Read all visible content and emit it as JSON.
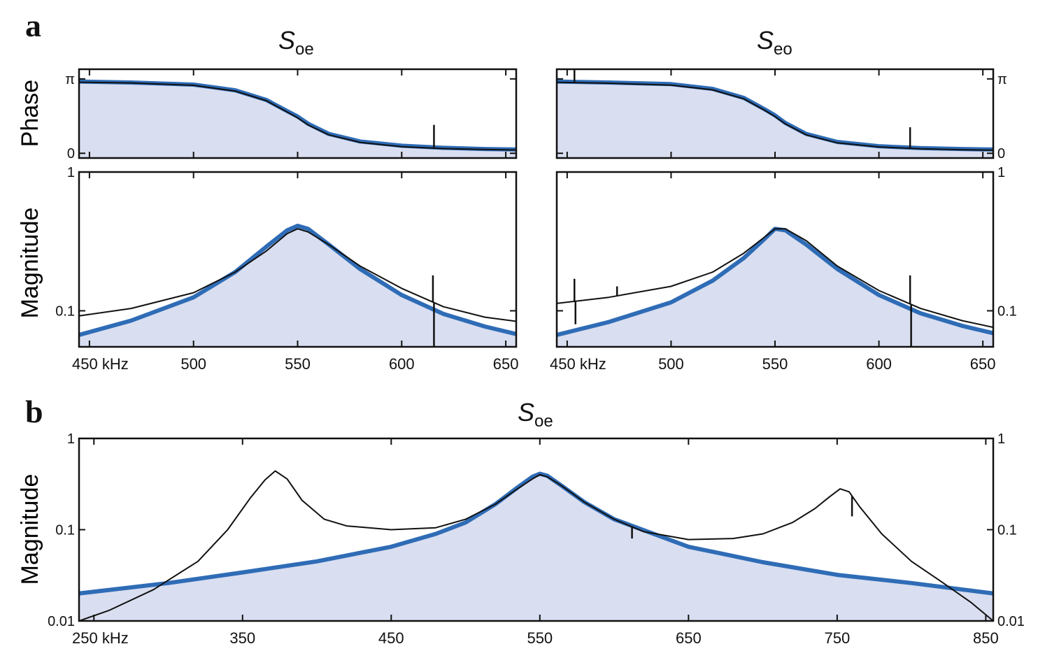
{
  "panel_labels": {
    "a": "a",
    "b": "b"
  },
  "titles": {
    "a_left": {
      "symbol": "S",
      "subscript": "oe"
    },
    "a_right": {
      "symbol": "S",
      "subscript": "eo"
    },
    "b": {
      "symbol": "S",
      "subscript": "oe"
    }
  },
  "axis_labels": {
    "phase": "Phase",
    "magnitude": "Magnitude"
  },
  "colors": {
    "fit": "#2f6cb6",
    "fill": "#d9def0",
    "data": "#111111",
    "frame": "#111111"
  },
  "chart_data": [
    {
      "id": "a-left-phase",
      "type": "line",
      "title": "S_oe",
      "ylabel": "Phase",
      "xlim": [
        445,
        655
      ],
      "ylim": [
        -0.2,
        3.55
      ],
      "yscale": "linear",
      "xticks": [
        450,
        500,
        550,
        600,
        650
      ],
      "yticks": [
        0,
        3.14159
      ],
      "yticklabels": [
        "0",
        "π"
      ],
      "ytick_side": "left",
      "series": [
        {
          "role": "fit",
          "x": [
            445,
            470,
            500,
            520,
            535,
            545,
            550,
            555,
            565,
            580,
            600,
            620,
            640,
            655
          ],
          "y": [
            3.03,
            2.99,
            2.9,
            2.66,
            2.25,
            1.78,
            1.55,
            1.25,
            0.82,
            0.5,
            0.32,
            0.23,
            0.18,
            0.16
          ]
        },
        {
          "role": "data",
          "x": [
            445,
            470,
            500,
            520,
            535,
            545,
            550,
            555,
            565,
            580,
            600,
            620,
            640,
            655
          ],
          "y": [
            3.0,
            2.97,
            2.87,
            2.63,
            2.22,
            1.74,
            1.5,
            1.2,
            0.78,
            0.46,
            0.28,
            0.2,
            0.16,
            0.14
          ],
          "spikes": [
            {
              "x": 615.5,
              "to": 1.2
            }
          ]
        }
      ]
    },
    {
      "id": "a-right-phase",
      "type": "line",
      "title": "S_eo",
      "ylabel": "Phase",
      "xlim": [
        445,
        655
      ],
      "ylim": [
        -0.2,
        3.55
      ],
      "yscale": "linear",
      "xticks": [
        450,
        500,
        550,
        600,
        650
      ],
      "yticks": [
        0,
        3.14159
      ],
      "yticklabels": [
        "0",
        "π"
      ],
      "ytick_side": "right",
      "series": [
        {
          "role": "fit",
          "x": [
            445,
            470,
            500,
            520,
            535,
            545,
            550,
            555,
            565,
            580,
            600,
            620,
            640,
            655
          ],
          "y": [
            3.03,
            2.99,
            2.92,
            2.72,
            2.34,
            1.86,
            1.6,
            1.28,
            0.82,
            0.48,
            0.3,
            0.22,
            0.18,
            0.16
          ]
        },
        {
          "role": "data",
          "x": [
            445,
            470,
            500,
            520,
            535,
            545,
            550,
            555,
            565,
            580,
            600,
            620,
            640,
            655
          ],
          "y": [
            3.0,
            2.96,
            2.88,
            2.68,
            2.3,
            1.82,
            1.55,
            1.24,
            0.78,
            0.44,
            0.27,
            0.19,
            0.15,
            0.13
          ],
          "spikes": [
            {
              "x": 453.5,
              "to": 3.55
            },
            {
              "x": 615,
              "to": 1.1
            }
          ]
        }
      ]
    },
    {
      "id": "a-left-magnitude",
      "type": "line",
      "xlabel_unit": "kHz",
      "ylabel": "Magnitude",
      "xlim": [
        445,
        655
      ],
      "ylim": [
        0.055,
        1
      ],
      "yscale": "log",
      "xticks": [
        450,
        500,
        550,
        600,
        650
      ],
      "xticklabels": [
        "450 kHz",
        "500",
        "550",
        "600",
        "650"
      ],
      "yticks": [
        0.1,
        1
      ],
      "yticklabels": [
        "0.1",
        "1"
      ],
      "ytick_side": "left",
      "series": [
        {
          "role": "fit",
          "x": [
            445,
            470,
            500,
            520,
            535,
            545,
            550,
            555,
            565,
            580,
            600,
            620,
            640,
            655
          ],
          "y": [
            0.067,
            0.085,
            0.125,
            0.19,
            0.29,
            0.38,
            0.41,
            0.39,
            0.3,
            0.2,
            0.13,
            0.095,
            0.077,
            0.068
          ]
        },
        {
          "role": "data",
          "x": [
            445,
            470,
            500,
            520,
            535,
            545,
            550,
            555,
            565,
            580,
            600,
            620,
            640,
            655
          ],
          "y": [
            0.092,
            0.104,
            0.135,
            0.19,
            0.27,
            0.36,
            0.39,
            0.37,
            0.3,
            0.21,
            0.145,
            0.107,
            0.09,
            0.084
          ],
          "spikes": [
            {
              "x": 615,
              "to": 0.18
            },
            {
              "x": 615.5,
              "to": 0.055
            }
          ]
        }
      ]
    },
    {
      "id": "a-right-magnitude",
      "type": "line",
      "xlabel_unit": "kHz",
      "ylabel": "Magnitude",
      "xlim": [
        445,
        655
      ],
      "ylim": [
        0.055,
        1
      ],
      "yscale": "log",
      "xticks": [
        450,
        500,
        550,
        600,
        650
      ],
      "xticklabels": [
        "450 kHz",
        "500",
        "550",
        "600",
        "650"
      ],
      "yticks": [
        0.1,
        1
      ],
      "yticklabels": [
        "0.1",
        "1"
      ],
      "ytick_side": "right",
      "series": [
        {
          "role": "fit",
          "x": [
            445,
            470,
            500,
            520,
            535,
            545,
            550,
            555,
            565,
            580,
            600,
            620,
            640,
            655
          ],
          "y": [
            0.067,
            0.083,
            0.115,
            0.165,
            0.24,
            0.33,
            0.39,
            0.38,
            0.3,
            0.2,
            0.13,
            0.096,
            0.078,
            0.069
          ]
        },
        {
          "role": "data",
          "x": [
            445,
            470,
            500,
            520,
            535,
            545,
            550,
            555,
            565,
            580,
            600,
            620,
            640,
            655
          ],
          "y": [
            0.113,
            0.125,
            0.15,
            0.19,
            0.26,
            0.34,
            0.39,
            0.39,
            0.32,
            0.21,
            0.14,
            0.104,
            0.085,
            0.076
          ],
          "spikes": [
            {
              "x": 453.5,
              "to": 0.17
            },
            {
              "x": 454,
              "to": 0.08
            },
            {
              "x": 474,
              "to": 0.15
            },
            {
              "x": 615,
              "to": 0.18
            },
            {
              "x": 615.5,
              "to": 0.055
            }
          ]
        }
      ]
    },
    {
      "id": "b-magnitude",
      "type": "line",
      "title": "S_oe",
      "xlabel_unit": "kHz",
      "ylabel": "Magnitude",
      "xlim": [
        240,
        855
      ],
      "ylim": [
        0.01,
        1
      ],
      "yscale": "log",
      "xticks": [
        250,
        350,
        450,
        550,
        650,
        750,
        850
      ],
      "xticklabels": [
        "250 kHz",
        "350",
        "450",
        "550",
        "650",
        "750",
        "850"
      ],
      "yticks": [
        0.01,
        0.1,
        1
      ],
      "yticklabels": [
        "0.01",
        "0.1",
        "1"
      ],
      "ytick_side": "both",
      "series": [
        {
          "role": "fit",
          "x": [
            240,
            300,
            350,
            400,
            450,
            480,
            500,
            520,
            535,
            545,
            550,
            555,
            565,
            580,
            600,
            650,
            700,
            750,
            800,
            855
          ],
          "y": [
            0.02,
            0.026,
            0.034,
            0.045,
            0.065,
            0.09,
            0.12,
            0.19,
            0.29,
            0.38,
            0.41,
            0.39,
            0.3,
            0.2,
            0.13,
            0.065,
            0.044,
            0.032,
            0.026,
            0.02
          ]
        },
        {
          "role": "data",
          "x": [
            240,
            260,
            290,
            320,
            340,
            355,
            365,
            372,
            380,
            390,
            405,
            420,
            450,
            480,
            500,
            520,
            535,
            545,
            550,
            555,
            565,
            580,
            600,
            620,
            650,
            680,
            700,
            720,
            735,
            745,
            752,
            758,
            765,
            780,
            800,
            820,
            840,
            855
          ],
          "y": [
            0.01,
            0.013,
            0.022,
            0.045,
            0.1,
            0.22,
            0.35,
            0.44,
            0.36,
            0.21,
            0.13,
            0.11,
            0.1,
            0.105,
            0.13,
            0.19,
            0.28,
            0.36,
            0.4,
            0.38,
            0.3,
            0.2,
            0.13,
            0.095,
            0.078,
            0.08,
            0.09,
            0.12,
            0.17,
            0.23,
            0.28,
            0.26,
            0.18,
            0.09,
            0.045,
            0.027,
            0.016,
            0.01
          ],
          "spikes": [
            {
              "x": 612,
              "to": 0.08
            },
            {
              "x": 760,
              "to": 0.14
            }
          ]
        }
      ]
    }
  ]
}
